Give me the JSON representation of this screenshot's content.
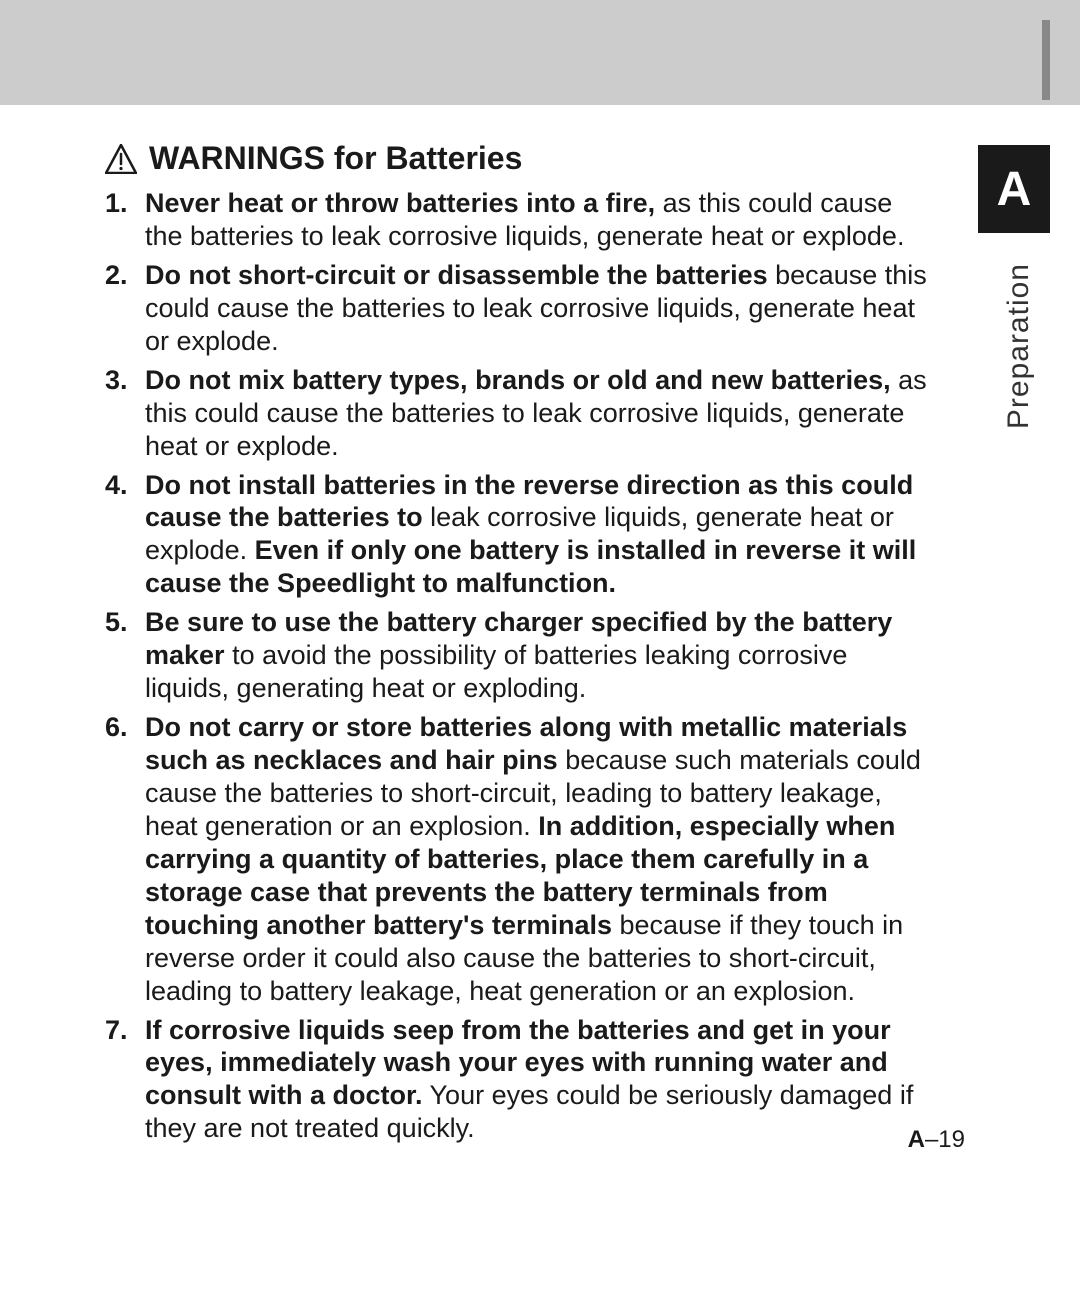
{
  "sideTab": {
    "letter": "A",
    "label": "Preparation"
  },
  "heading": "WARNINGS for Batteries",
  "items": [
    {
      "segments": [
        {
          "b": true,
          "t": "Never heat or throw batteries into a fire,"
        },
        {
          "b": false,
          "t": " as this could cause the batteries to leak corrosive liquids, generate heat or explode."
        }
      ]
    },
    {
      "segments": [
        {
          "b": true,
          "t": "Do not short-circuit or disassemble the batteries"
        },
        {
          "b": false,
          "t": " because this could cause the batteries to leak corrosive liquids, generate heat or explode."
        }
      ]
    },
    {
      "segments": [
        {
          "b": true,
          "t": "Do not mix battery types, brands or old and new batteries,"
        },
        {
          "b": false,
          "t": " as this could cause the batteries to leak corrosive liquids, generate heat or explode."
        }
      ]
    },
    {
      "segments": [
        {
          "b": true,
          "t": "Do not install batteries in the reverse direction as this could cause the batteries to"
        },
        {
          "b": false,
          "t": " leak corrosive liquids, generate heat or explode. "
        },
        {
          "b": true,
          "t": "Even if only one battery is installed in reverse it will cause the Speedlight to malfunction."
        }
      ]
    },
    {
      "segments": [
        {
          "b": true,
          "t": "Be sure to use the battery charger specified by the battery maker"
        },
        {
          "b": false,
          "t": " to avoid the possibility of batteries leaking corrosive liquids, generating heat or exploding."
        }
      ]
    },
    {
      "segments": [
        {
          "b": true,
          "t": "Do not carry or store batteries along with metallic materials such as necklaces and hair pins"
        },
        {
          "b": false,
          "t": " because such materials could cause the batteries to short-circuit, leading to battery leakage, heat generation or an explosion. "
        },
        {
          "b": true,
          "t": "In addition, especially when carrying a quantity of batteries, place them carefully in a storage case that prevents the battery terminals from touching another battery's terminals"
        },
        {
          "b": false,
          "t": " because if they touch in reverse order it could also cause the batteries to short-circuit, leading to battery leakage, heat generation or an explosion."
        }
      ]
    },
    {
      "segments": [
        {
          "b": true,
          "t": "If corrosive liquids seep from the batteries and get in your eyes, immediately wash your eyes with running water and consult with a doctor."
        },
        {
          "b": false,
          "t": " Your eyes could be seriously damaged if they are not treated quickly."
        }
      ]
    }
  ],
  "pageNumber": {
    "prefix": "A",
    "sep": "–",
    "num": "19"
  },
  "colors": {
    "topBar": "#cccccc",
    "tabBg": "#1a1a1a",
    "tabFg": "#ffffff",
    "text": "#1a1a1a",
    "bg": "#ffffff"
  }
}
